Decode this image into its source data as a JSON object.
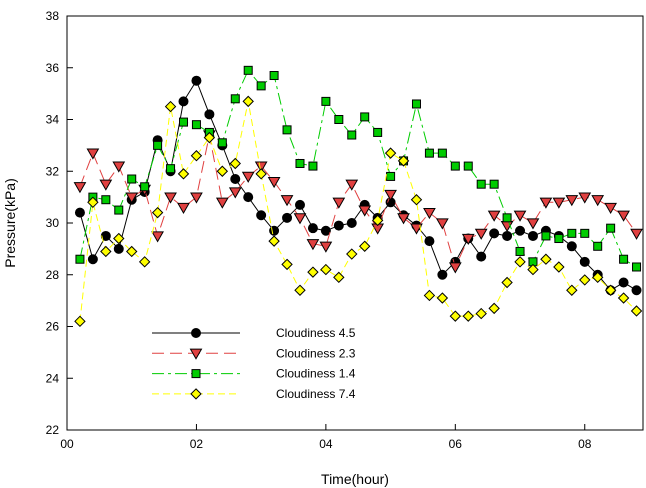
{
  "chart_data": {
    "type": "line",
    "xlabel": "Time(hour)",
    "ylabel": "Pressure(kPa)",
    "xlim": [
      0,
      8.9
    ],
    "ylim": [
      22,
      38
    ],
    "x_ticks": [
      {
        "value": 0,
        "label": "00"
      },
      {
        "value": 2,
        "label": "02"
      },
      {
        "value": 4,
        "label": "04"
      },
      {
        "value": 6,
        "label": "06"
      },
      {
        "value": 8,
        "label": "08"
      }
    ],
    "y_ticks": [
      22,
      24,
      26,
      28,
      30,
      32,
      34,
      36,
      38
    ],
    "grid": false,
    "legend_position": "bottom-center-left",
    "x": [
      0.2,
      0.4,
      0.6,
      0.8,
      1.0,
      1.2,
      1.4,
      1.6,
      1.8,
      2.0,
      2.2,
      2.4,
      2.6,
      2.8,
      3.0,
      3.2,
      3.4,
      3.6,
      3.8,
      4.0,
      4.2,
      4.4,
      4.6,
      4.8,
      5.0,
      5.2,
      5.4,
      5.6,
      5.8,
      6.0,
      6.2,
      6.4,
      6.6,
      6.8,
      7.0,
      7.2,
      7.4,
      7.6,
      7.8,
      8.0,
      8.2,
      8.4,
      8.6,
      8.8
    ],
    "series": [
      {
        "name": "Cloudiness 4.5",
        "color": "#000000",
        "dash": "solid",
        "marker": "circle",
        "values": [
          30.4,
          28.6,
          29.5,
          29.0,
          30.9,
          31.2,
          33.2,
          32.0,
          34.7,
          35.5,
          34.2,
          33.0,
          31.7,
          31.0,
          30.3,
          29.7,
          30.2,
          30.7,
          29.8,
          29.7,
          29.9,
          30.0,
          30.7,
          30.2,
          30.8,
          30.3,
          29.9,
          29.3,
          28.0,
          28.5,
          29.4,
          28.7,
          29.6,
          29.5,
          29.7,
          29.5,
          29.7,
          29.5,
          29.1,
          28.5,
          28.0,
          27.4,
          27.7,
          27.4
        ]
      },
      {
        "name": "Cloudiness 2.3",
        "color": "#e04040",
        "dash": "long",
        "marker": "triangle-down",
        "values": [
          31.4,
          32.7,
          31.5,
          32.2,
          31.0,
          31.3,
          29.5,
          31.0,
          30.6,
          31.0,
          33.4,
          30.8,
          31.2,
          31.8,
          32.2,
          31.6,
          30.9,
          30.2,
          29.2,
          29.1,
          30.8,
          31.5,
          30.5,
          29.8,
          31.1,
          30.2,
          29.8,
          30.4,
          30.0,
          28.3,
          29.4,
          29.6,
          30.3,
          29.9,
          30.3,
          30.0,
          30.8,
          30.8,
          30.9,
          31.0,
          30.9,
          30.6,
          30.3,
          29.6
        ]
      },
      {
        "name": "Cloudiness 1.4",
        "color": "#00cc00",
        "dash": "long-short",
        "marker": "square",
        "values": [
          28.6,
          31.0,
          30.9,
          30.5,
          31.7,
          31.4,
          33.0,
          32.1,
          33.9,
          33.8,
          33.5,
          33.1,
          34.8,
          35.9,
          35.3,
          35.7,
          33.6,
          32.3,
          32.2,
          34.7,
          34.0,
          33.4,
          34.1,
          33.5,
          31.8,
          32.4,
          34.6,
          32.7,
          32.7,
          32.2,
          32.2,
          31.5,
          31.5,
          30.2,
          28.9,
          28.5,
          29.5,
          29.4,
          29.6,
          29.6,
          29.1,
          29.8,
          28.6,
          28.3
        ]
      },
      {
        "name": "Cloudiness 7.4",
        "color": "#ffff00",
        "dash": "dashed",
        "marker": "diamond",
        "values": [
          26.2,
          30.8,
          28.9,
          29.4,
          28.9,
          28.5,
          30.4,
          34.5,
          31.9,
          32.6,
          33.3,
          32.0,
          32.3,
          34.7,
          31.9,
          29.3,
          28.4,
          27.4,
          28.1,
          28.2,
          27.9,
          28.8,
          29.1,
          30.1,
          32.7,
          32.4,
          30.9,
          27.2,
          27.1,
          26.4,
          26.4,
          26.5,
          26.7,
          27.7,
          28.5,
          28.2,
          28.6,
          28.3,
          27.4,
          27.8,
          27.9,
          27.4,
          27.1,
          26.6
        ]
      }
    ]
  }
}
